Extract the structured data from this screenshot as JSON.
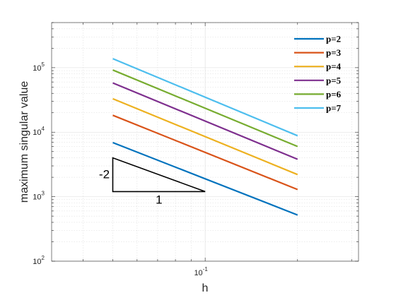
{
  "chart_data": {
    "type": "line",
    "xlabel": "h",
    "ylabel": "maximum singular value",
    "xscale": "log",
    "yscale": "log",
    "xlim": [
      0.0316,
      0.316
    ],
    "ylim": [
      100,
      500000
    ],
    "grid": true,
    "minor_grid": true,
    "legend_position": "top-right",
    "x_tick_labels": [
      {
        "value": 0.1,
        "base": "10",
        "exp": "-1"
      }
    ],
    "y_tick_labels": [
      {
        "value": 100,
        "base": "10",
        "exp": "2"
      },
      {
        "value": 1000,
        "base": "10",
        "exp": "3"
      },
      {
        "value": 10000,
        "base": "10",
        "exp": "4"
      },
      {
        "value": 100000,
        "base": "10",
        "exp": "5"
      }
    ],
    "series": [
      {
        "name": "p=2",
        "color": "#0072BD",
        "x": [
          0.05,
          0.2
        ],
        "y": [
          6900,
          520
        ]
      },
      {
        "name": "p=3",
        "color": "#D95319",
        "x": [
          0.05,
          0.2
        ],
        "y": [
          18300,
          1290
        ]
      },
      {
        "name": "p=4",
        "color": "#EDB120",
        "x": [
          0.05,
          0.2
        ],
        "y": [
          33000,
          2200
        ]
      },
      {
        "name": "p=5",
        "color": "#7E2F8E",
        "x": [
          0.05,
          0.2
        ],
        "y": [
          58000,
          3800
        ]
      },
      {
        "name": "p=6",
        "color": "#77AC30",
        "x": [
          0.05,
          0.2
        ],
        "y": [
          92000,
          6000
        ]
      },
      {
        "name": "p=7",
        "color": "#4DBEEE",
        "x": [
          0.05,
          0.2
        ],
        "y": [
          138000,
          8800
        ]
      }
    ],
    "slope_triangle": {
      "x": [
        0.05,
        0.1
      ],
      "y": [
        1200,
        4000
      ],
      "vertical_label": "-2",
      "horizontal_label": "1",
      "color": "#000000"
    }
  }
}
